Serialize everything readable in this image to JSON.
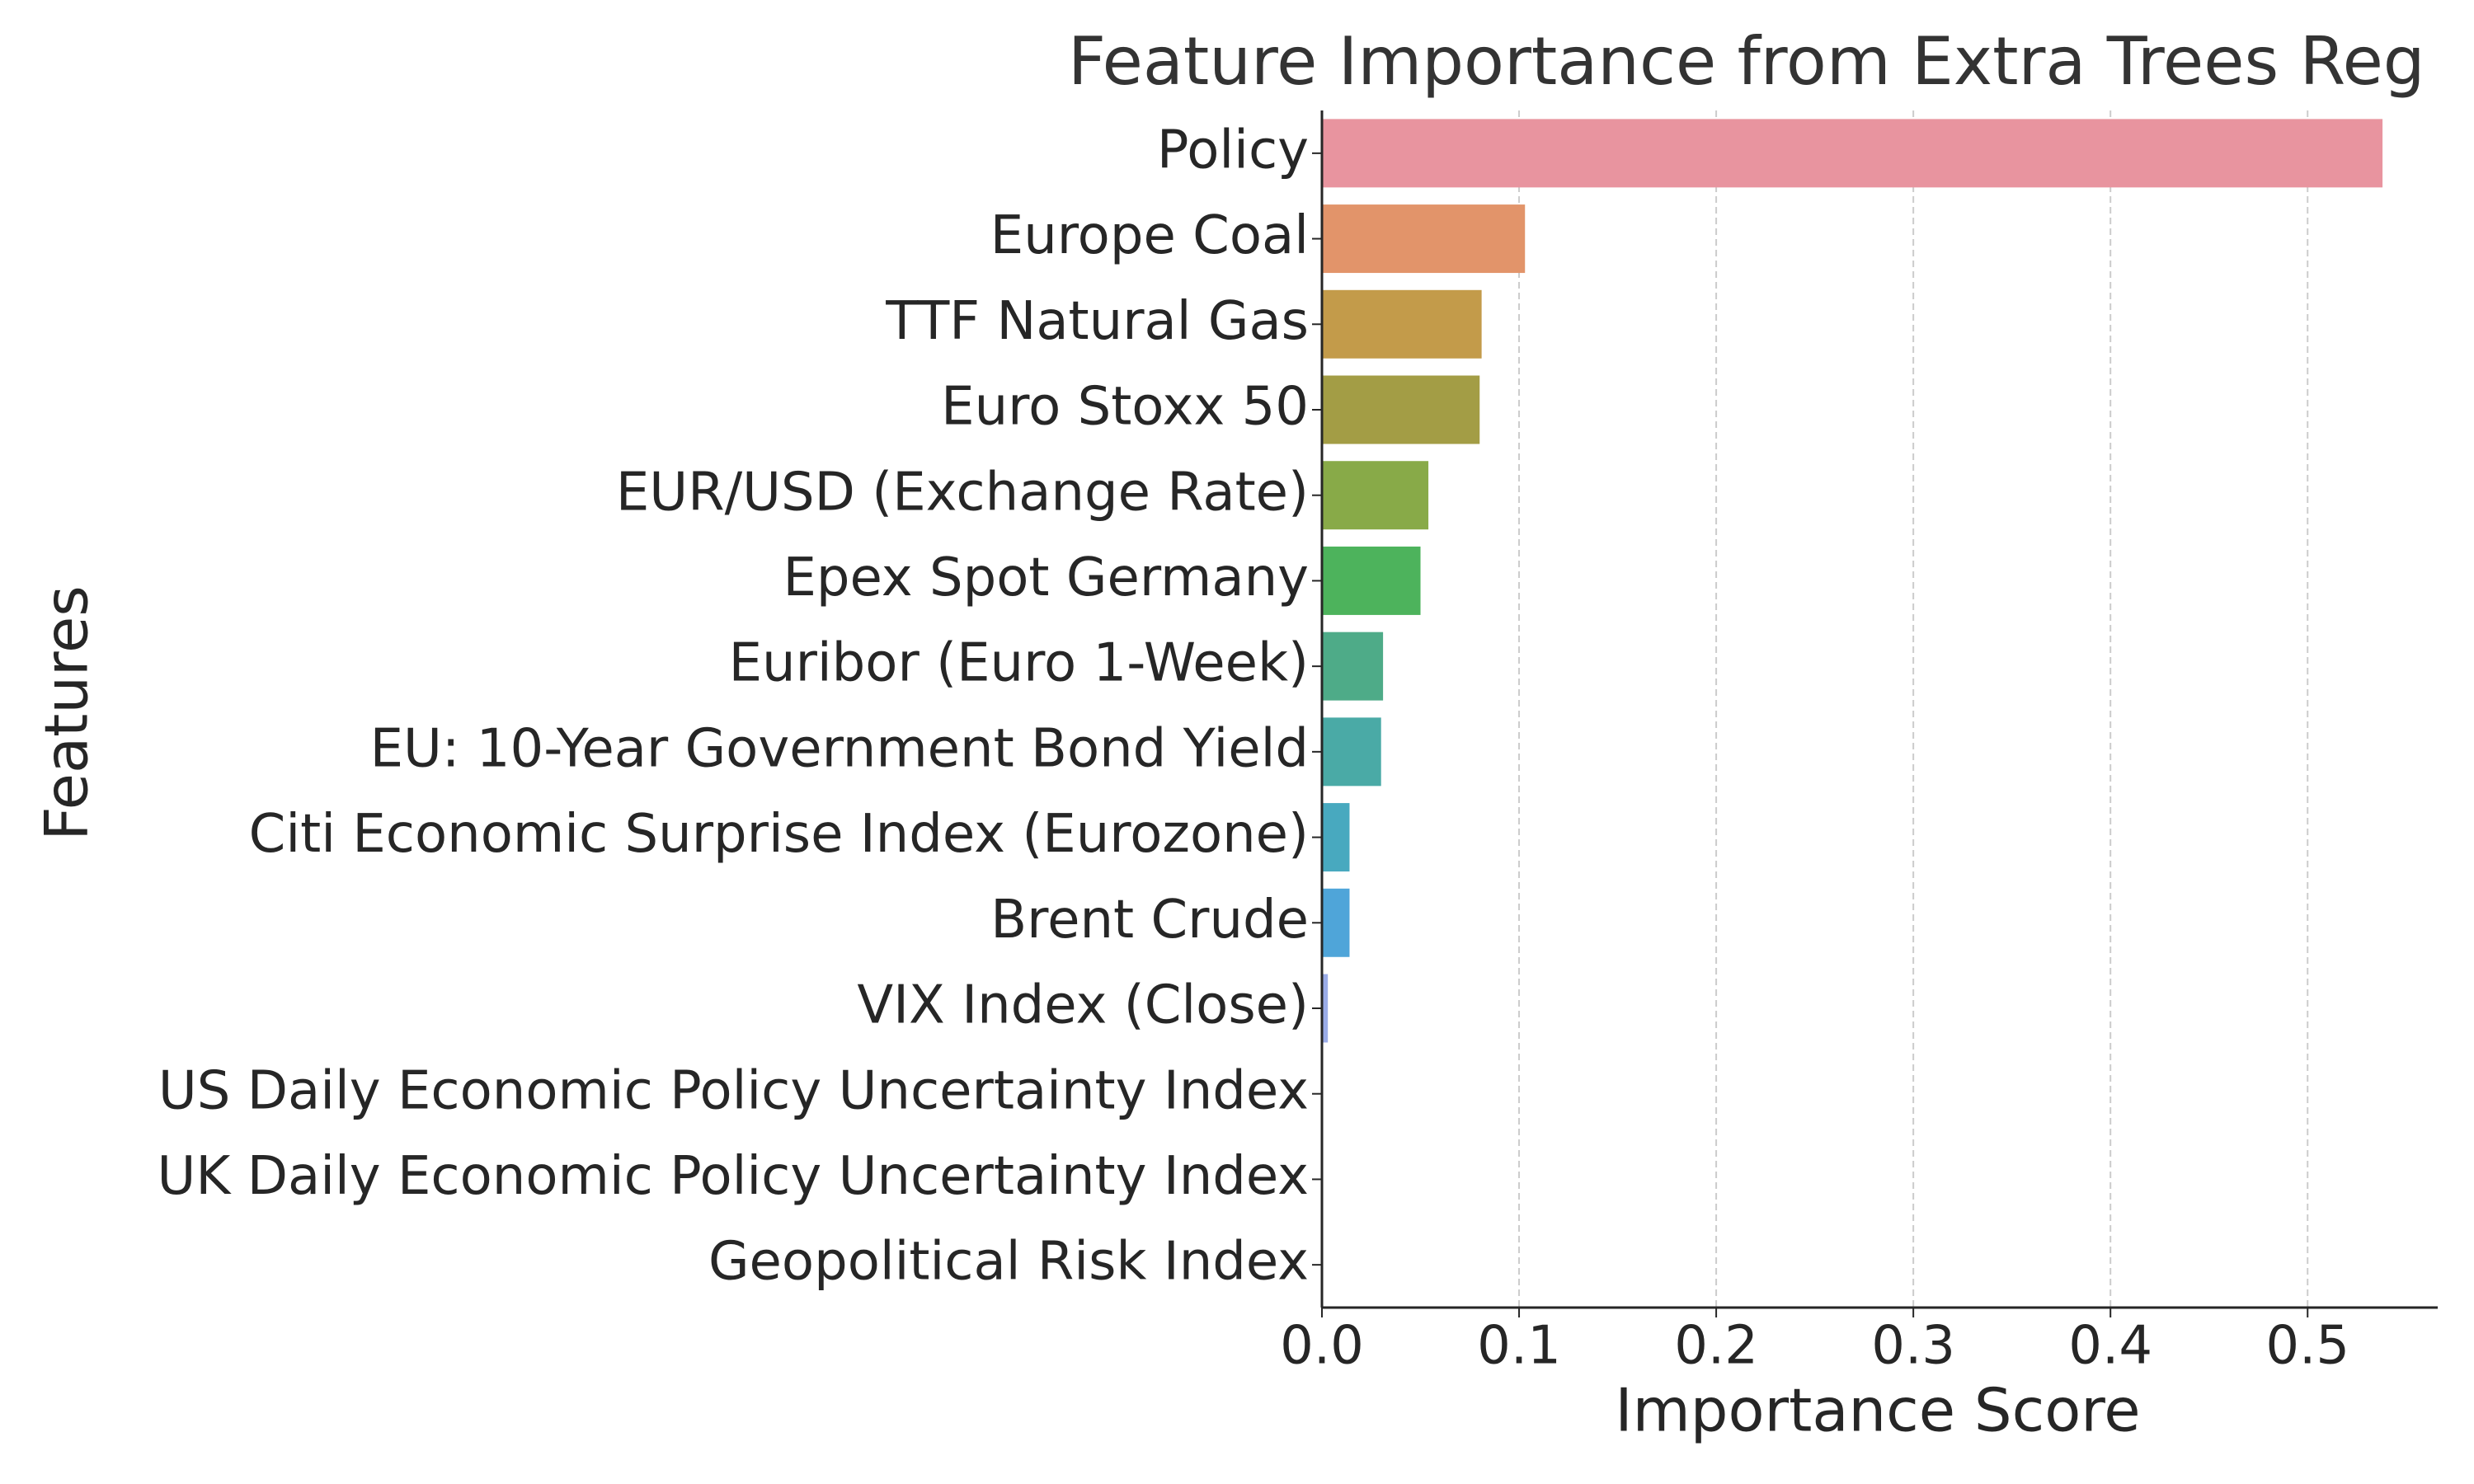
{
  "chart_data": {
    "type": "barh",
    "title": "Feature Importance from Extra Trees Reg",
    "xlabel": "Importance Score",
    "ylabel": "Features",
    "categories": [
      "Policy",
      "Europe Coal",
      "TTF Natural Gas",
      "Euro Stoxx 50",
      "EUR/USD (Exchange Rate)",
      "Epex Spot Germany",
      "Euribor (Euro 1-Week)",
      "EU: 10-Year Government Bond Yield",
      "Citi Economic Surprise Index (Eurozone)",
      "Brent Crude",
      "VIX Index (Close)",
      "US Daily Economic Policy Uncertainty Index",
      "UK Daily Economic Policy Uncertainty Index",
      "Geopolitical Risk Index"
    ],
    "values": [
      0.538,
      0.103,
      0.081,
      0.08,
      0.054,
      0.05,
      0.031,
      0.03,
      0.014,
      0.014,
      0.003,
      0.0005,
      0.0003,
      0.0002
    ],
    "colors": [
      "#e8949f",
      "#e2946a",
      "#c39b4a",
      "#a39d45",
      "#88aa48",
      "#4db35c",
      "#4eab88",
      "#4aaaa6",
      "#48a9bf",
      "#4fa5d9",
      "#9aace8",
      "#c49ae6",
      "#df8fd6",
      "#e88fb8"
    ],
    "xlim": [
      0,
      0.566
    ],
    "xticks": [
      {
        "value": 0,
        "label": "0.0"
      },
      0.1,
      0.2,
      0.3,
      0.4,
      0.5
    ],
    "grid": true
  }
}
